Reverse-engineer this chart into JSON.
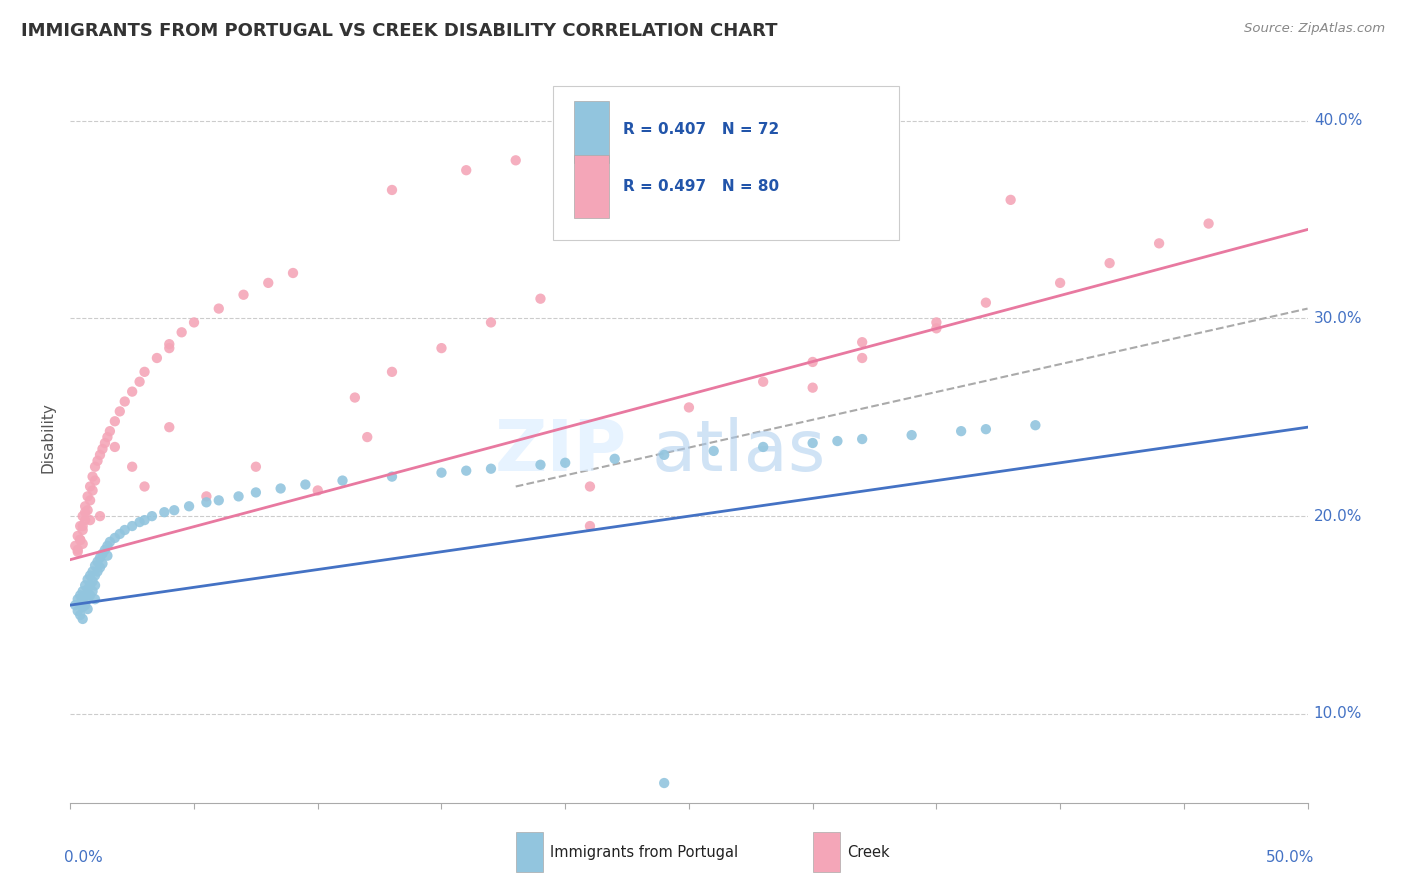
{
  "title": "IMMIGRANTS FROM PORTUGAL VS CREEK DISABILITY CORRELATION CHART",
  "source": "Source: ZipAtlas.com",
  "ylabel": "Disability",
  "xlim": [
    0.0,
    0.5
  ],
  "ylim": [
    0.055,
    0.425
  ],
  "yticks": [
    0.1,
    0.2,
    0.3,
    0.4
  ],
  "ytick_labels": [
    "10.0%",
    "20.0%",
    "30.0%",
    "40.0%"
  ],
  "blue_color": "#92C5DE",
  "pink_color": "#F4A6B8",
  "blue_line_color": "#4472C4",
  "pink_line_color": "#E879A0",
  "gray_line_color": "#AAAAAA",
  "blue_line_x0": 0.0,
  "blue_line_y0": 0.155,
  "blue_line_x1": 0.5,
  "blue_line_y1": 0.245,
  "pink_line_x0": 0.0,
  "pink_line_y0": 0.178,
  "pink_line_x1": 0.5,
  "pink_line_y1": 0.345,
  "gray_line_x0": 0.18,
  "gray_line_y0": 0.215,
  "gray_line_x1": 0.5,
  "gray_line_y1": 0.305,
  "watermark_zip": "ZIP",
  "watermark_atlas": "atlas",
  "blue_scatter_x": [
    0.002,
    0.003,
    0.003,
    0.004,
    0.004,
    0.004,
    0.005,
    0.005,
    0.005,
    0.005,
    0.006,
    0.006,
    0.006,
    0.007,
    0.007,
    0.007,
    0.007,
    0.008,
    0.008,
    0.008,
    0.009,
    0.009,
    0.009,
    0.01,
    0.01,
    0.01,
    0.01,
    0.011,
    0.011,
    0.012,
    0.012,
    0.013,
    0.013,
    0.014,
    0.015,
    0.015,
    0.016,
    0.018,
    0.02,
    0.022,
    0.025,
    0.028,
    0.03,
    0.033,
    0.038,
    0.042,
    0.048,
    0.055,
    0.06,
    0.068,
    0.075,
    0.085,
    0.095,
    0.11,
    0.13,
    0.15,
    0.16,
    0.17,
    0.19,
    0.2,
    0.22,
    0.24,
    0.26,
    0.28,
    0.3,
    0.31,
    0.32,
    0.34,
    0.36,
    0.37,
    0.39,
    0.24
  ],
  "blue_scatter_y": [
    0.155,
    0.158,
    0.152,
    0.16,
    0.156,
    0.15,
    0.162,
    0.158,
    0.154,
    0.148,
    0.165,
    0.16,
    0.155,
    0.168,
    0.163,
    0.158,
    0.153,
    0.17,
    0.165,
    0.16,
    0.172,
    0.167,
    0.162,
    0.175,
    0.17,
    0.165,
    0.158,
    0.177,
    0.172,
    0.179,
    0.174,
    0.181,
    0.176,
    0.183,
    0.185,
    0.18,
    0.187,
    0.189,
    0.191,
    0.193,
    0.195,
    0.197,
    0.198,
    0.2,
    0.202,
    0.203,
    0.205,
    0.207,
    0.208,
    0.21,
    0.212,
    0.214,
    0.216,
    0.218,
    0.22,
    0.222,
    0.223,
    0.224,
    0.226,
    0.227,
    0.229,
    0.231,
    0.233,
    0.235,
    0.237,
    0.238,
    0.239,
    0.241,
    0.243,
    0.244,
    0.246,
    0.065
  ],
  "pink_scatter_x": [
    0.002,
    0.003,
    0.003,
    0.004,
    0.004,
    0.005,
    0.005,
    0.005,
    0.006,
    0.006,
    0.007,
    0.007,
    0.008,
    0.008,
    0.009,
    0.009,
    0.01,
    0.01,
    0.011,
    0.012,
    0.013,
    0.014,
    0.015,
    0.016,
    0.018,
    0.02,
    0.022,
    0.025,
    0.028,
    0.03,
    0.035,
    0.04,
    0.045,
    0.05,
    0.06,
    0.07,
    0.08,
    0.09,
    0.1,
    0.115,
    0.13,
    0.15,
    0.17,
    0.19,
    0.21,
    0.055,
    0.075,
    0.12,
    0.25,
    0.28,
    0.3,
    0.32,
    0.35,
    0.37,
    0.4,
    0.42,
    0.44,
    0.46,
    0.28,
    0.31,
    0.33,
    0.21,
    0.04,
    0.04,
    0.03,
    0.025,
    0.018,
    0.012,
    0.008,
    0.006,
    0.005,
    0.004,
    0.003,
    0.38,
    0.35,
    0.32,
    0.3,
    0.13,
    0.16,
    0.18
  ],
  "pink_scatter_y": [
    0.185,
    0.19,
    0.183,
    0.195,
    0.188,
    0.2,
    0.193,
    0.186,
    0.205,
    0.198,
    0.21,
    0.203,
    0.215,
    0.208,
    0.22,
    0.213,
    0.225,
    0.218,
    0.228,
    0.231,
    0.234,
    0.237,
    0.24,
    0.243,
    0.248,
    0.253,
    0.258,
    0.263,
    0.268,
    0.273,
    0.28,
    0.287,
    0.293,
    0.298,
    0.305,
    0.312,
    0.318,
    0.323,
    0.213,
    0.26,
    0.273,
    0.285,
    0.298,
    0.31,
    0.195,
    0.21,
    0.225,
    0.24,
    0.255,
    0.268,
    0.278,
    0.288,
    0.298,
    0.308,
    0.318,
    0.328,
    0.338,
    0.348,
    0.358,
    0.36,
    0.365,
    0.215,
    0.285,
    0.245,
    0.215,
    0.225,
    0.235,
    0.2,
    0.198,
    0.202,
    0.195,
    0.188,
    0.182,
    0.36,
    0.295,
    0.28,
    0.265,
    0.365,
    0.375,
    0.38
  ]
}
